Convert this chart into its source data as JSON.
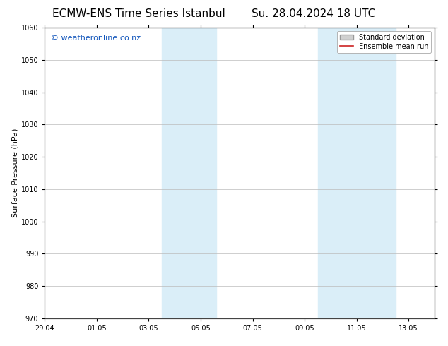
{
  "title_left": "ECMW-ENS Time Series Istanbul",
  "title_right": "Su. 28.04.2024 18 UTC",
  "ylabel": "Surface Pressure (hPa)",
  "ylim": [
    970,
    1060
  ],
  "yticks": [
    970,
    980,
    990,
    1000,
    1010,
    1020,
    1030,
    1040,
    1050,
    1060
  ],
  "xtick_labels": [
    "29.04",
    "01.05",
    "03.05",
    "05.05",
    "07.05",
    "09.05",
    "11.05",
    "13.05"
  ],
  "xtick_positions": [
    0,
    2,
    4,
    6,
    8,
    10,
    12,
    14
  ],
  "xlim": [
    0,
    15.0
  ],
  "shaded_bands": [
    {
      "x_start": 4.5,
      "x_end": 6.6,
      "color": "#daeef8",
      "alpha": 1.0
    },
    {
      "x_start": 10.5,
      "x_end": 13.5,
      "color": "#daeef8",
      "alpha": 1.0
    }
  ],
  "watermark_text": "© weatheronline.co.nz",
  "watermark_color": "#1155bb",
  "watermark_fontsize": 8,
  "legend_std_label": "Standard deviation",
  "legend_mean_label": "Ensemble mean run",
  "legend_std_facecolor": "#d0d0d0",
  "legend_std_edgecolor": "#999999",
  "legend_mean_color": "#cc2222",
  "background_color": "#ffffff",
  "plot_bg_color": "#ffffff",
  "grid_color": "#bbbbbb",
  "title_fontsize": 11,
  "tick_fontsize": 7,
  "ylabel_fontsize": 8,
  "spine_color": "#444444",
  "spine_linewidth": 0.8
}
